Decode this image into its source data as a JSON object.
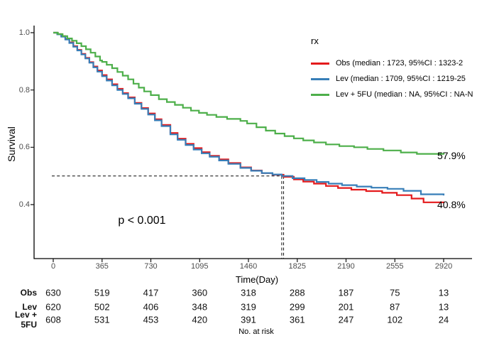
{
  "chart_data": {
    "type": "line",
    "subtype": "kaplan-meier-step-curves",
    "title": "",
    "xlabel": "Time(Day)",
    "ylabel": "Survival",
    "xlim": [
      0,
      2920
    ],
    "ylim": [
      0.21,
      1.05
    ],
    "x_ticks": [
      0,
      365,
      730,
      1095,
      1460,
      1825,
      2190,
      2555,
      2920
    ],
    "y_ticks": [
      0.4,
      0.6,
      0.8,
      1.0
    ],
    "grid": false,
    "legend": {
      "title": "rx",
      "position": "top-right",
      "entries": [
        {
          "name": "Obs",
          "label": "Obs (median : 1723, 95%CI : 1323-2",
          "color": "#E41A1C"
        },
        {
          "name": "Lev",
          "label": "Lev (median : 1709, 95%CI : 1219-25",
          "color": "#377EB8"
        },
        {
          "name": "Lev + 5FU",
          "label": "Lev + 5FU (median : NA, 95%CI : NA-N",
          "color": "#4DAF4A"
        }
      ]
    },
    "series": [
      {
        "name": "Obs",
        "color": "#E41A1C",
        "points": [
          [
            0,
            1.0
          ],
          [
            30,
            0.995
          ],
          [
            60,
            0.988
          ],
          [
            90,
            0.978
          ],
          [
            120,
            0.966
          ],
          [
            150,
            0.953
          ],
          [
            180,
            0.94
          ],
          [
            210,
            0.926
          ],
          [
            240,
            0.912
          ],
          [
            270,
            0.897
          ],
          [
            300,
            0.882
          ],
          [
            330,
            0.868
          ],
          [
            365,
            0.852
          ],
          [
            400,
            0.837
          ],
          [
            440,
            0.82
          ],
          [
            480,
            0.804
          ],
          [
            520,
            0.789
          ],
          [
            560,
            0.774
          ],
          [
            610,
            0.755
          ],
          [
            660,
            0.737
          ],
          [
            710,
            0.718
          ],
          [
            760,
            0.698
          ],
          [
            810,
            0.678
          ],
          [
            876,
            0.65
          ],
          [
            930,
            0.63
          ],
          [
            990,
            0.612
          ],
          [
            1050,
            0.597
          ],
          [
            1110,
            0.583
          ],
          [
            1170,
            0.57
          ],
          [
            1240,
            0.558
          ],
          [
            1310,
            0.545
          ],
          [
            1400,
            0.53
          ],
          [
            1480,
            0.519
          ],
          [
            1560,
            0.51
          ],
          [
            1640,
            0.504
          ],
          [
            1723,
            0.497
          ],
          [
            1800,
            0.488
          ],
          [
            1870,
            0.48
          ],
          [
            1950,
            0.473
          ],
          [
            2040,
            0.465
          ],
          [
            2130,
            0.458
          ],
          [
            2230,
            0.452
          ],
          [
            2340,
            0.447
          ],
          [
            2460,
            0.441
          ],
          [
            2570,
            0.433
          ],
          [
            2680,
            0.421
          ],
          [
            2770,
            0.408
          ],
          [
            2920,
            0.405
          ]
        ]
      },
      {
        "name": "Lev",
        "color": "#377EB8",
        "points": [
          [
            0,
            1.0
          ],
          [
            30,
            0.994
          ],
          [
            60,
            0.986
          ],
          [
            90,
            0.976
          ],
          [
            120,
            0.964
          ],
          [
            150,
            0.951
          ],
          [
            180,
            0.938
          ],
          [
            210,
            0.924
          ],
          [
            240,
            0.91
          ],
          [
            270,
            0.895
          ],
          [
            300,
            0.879
          ],
          [
            330,
            0.864
          ],
          [
            365,
            0.848
          ],
          [
            400,
            0.833
          ],
          [
            440,
            0.816
          ],
          [
            480,
            0.8
          ],
          [
            520,
            0.786
          ],
          [
            560,
            0.771
          ],
          [
            610,
            0.752
          ],
          [
            660,
            0.734
          ],
          [
            710,
            0.714
          ],
          [
            760,
            0.694
          ],
          [
            810,
            0.674
          ],
          [
            876,
            0.645
          ],
          [
            930,
            0.626
          ],
          [
            990,
            0.608
          ],
          [
            1050,
            0.592
          ],
          [
            1110,
            0.579
          ],
          [
            1170,
            0.567
          ],
          [
            1240,
            0.554
          ],
          [
            1310,
            0.542
          ],
          [
            1400,
            0.528
          ],
          [
            1480,
            0.518
          ],
          [
            1560,
            0.51
          ],
          [
            1640,
            0.505
          ],
          [
            1709,
            0.5
          ],
          [
            1790,
            0.492
          ],
          [
            1880,
            0.486
          ],
          [
            1970,
            0.479
          ],
          [
            2060,
            0.473
          ],
          [
            2160,
            0.468
          ],
          [
            2270,
            0.463
          ],
          [
            2380,
            0.459
          ],
          [
            2500,
            0.455
          ],
          [
            2620,
            0.448
          ],
          [
            2750,
            0.436
          ],
          [
            2920,
            0.432
          ]
        ]
      },
      {
        "name": "Lev + 5FU",
        "color": "#4DAF4A",
        "points": [
          [
            0,
            1.0
          ],
          [
            35,
            0.995
          ],
          [
            70,
            0.988
          ],
          [
            105,
            0.98
          ],
          [
            140,
            0.972
          ],
          [
            175,
            0.963
          ],
          [
            210,
            0.953
          ],
          [
            245,
            0.942
          ],
          [
            280,
            0.93
          ],
          [
            315,
            0.917
          ],
          [
            350,
            0.903
          ],
          [
            365,
            0.898
          ],
          [
            400,
            0.888
          ],
          [
            440,
            0.876
          ],
          [
            480,
            0.863
          ],
          [
            520,
            0.85
          ],
          [
            560,
            0.837
          ],
          [
            600,
            0.822
          ],
          [
            640,
            0.808
          ],
          [
            680,
            0.795
          ],
          [
            730,
            0.782
          ],
          [
            790,
            0.768
          ],
          [
            850,
            0.758
          ],
          [
            910,
            0.748
          ],
          [
            970,
            0.738
          ],
          [
            1030,
            0.728
          ],
          [
            1090,
            0.72
          ],
          [
            1150,
            0.713
          ],
          [
            1220,
            0.706
          ],
          [
            1300,
            0.699
          ],
          [
            1400,
            0.692
          ],
          [
            1450,
            0.683
          ],
          [
            1520,
            0.67
          ],
          [
            1590,
            0.658
          ],
          [
            1660,
            0.648
          ],
          [
            1730,
            0.639
          ],
          [
            1800,
            0.631
          ],
          [
            1870,
            0.624
          ],
          [
            1950,
            0.617
          ],
          [
            2040,
            0.61
          ],
          [
            2140,
            0.604
          ],
          [
            2250,
            0.6
          ],
          [
            2350,
            0.594
          ],
          [
            2470,
            0.589
          ],
          [
            2600,
            0.582
          ],
          [
            2720,
            0.577
          ],
          [
            2920,
            0.574
          ]
        ]
      }
    ],
    "annotations": {
      "p_value": "p < 0.001",
      "green_end_label": "57.9%",
      "red_end_label": "40.8%",
      "median_hline_survival": 0.5,
      "median_vlines_days": [
        1709,
        1723
      ]
    },
    "risk_table": {
      "caption": "No. at risk",
      "rows": [
        {
          "label": "Obs",
          "values": [
            630,
            519,
            417,
            360,
            318,
            288,
            187,
            75,
            13
          ]
        },
        {
          "label": "Lev",
          "values": [
            620,
            502,
            406,
            348,
            319,
            299,
            201,
            87,
            13
          ]
        },
        {
          "label": "Lev + 5FU",
          "values": [
            608,
            531,
            453,
            420,
            391,
            361,
            247,
            102,
            24
          ]
        }
      ]
    }
  }
}
